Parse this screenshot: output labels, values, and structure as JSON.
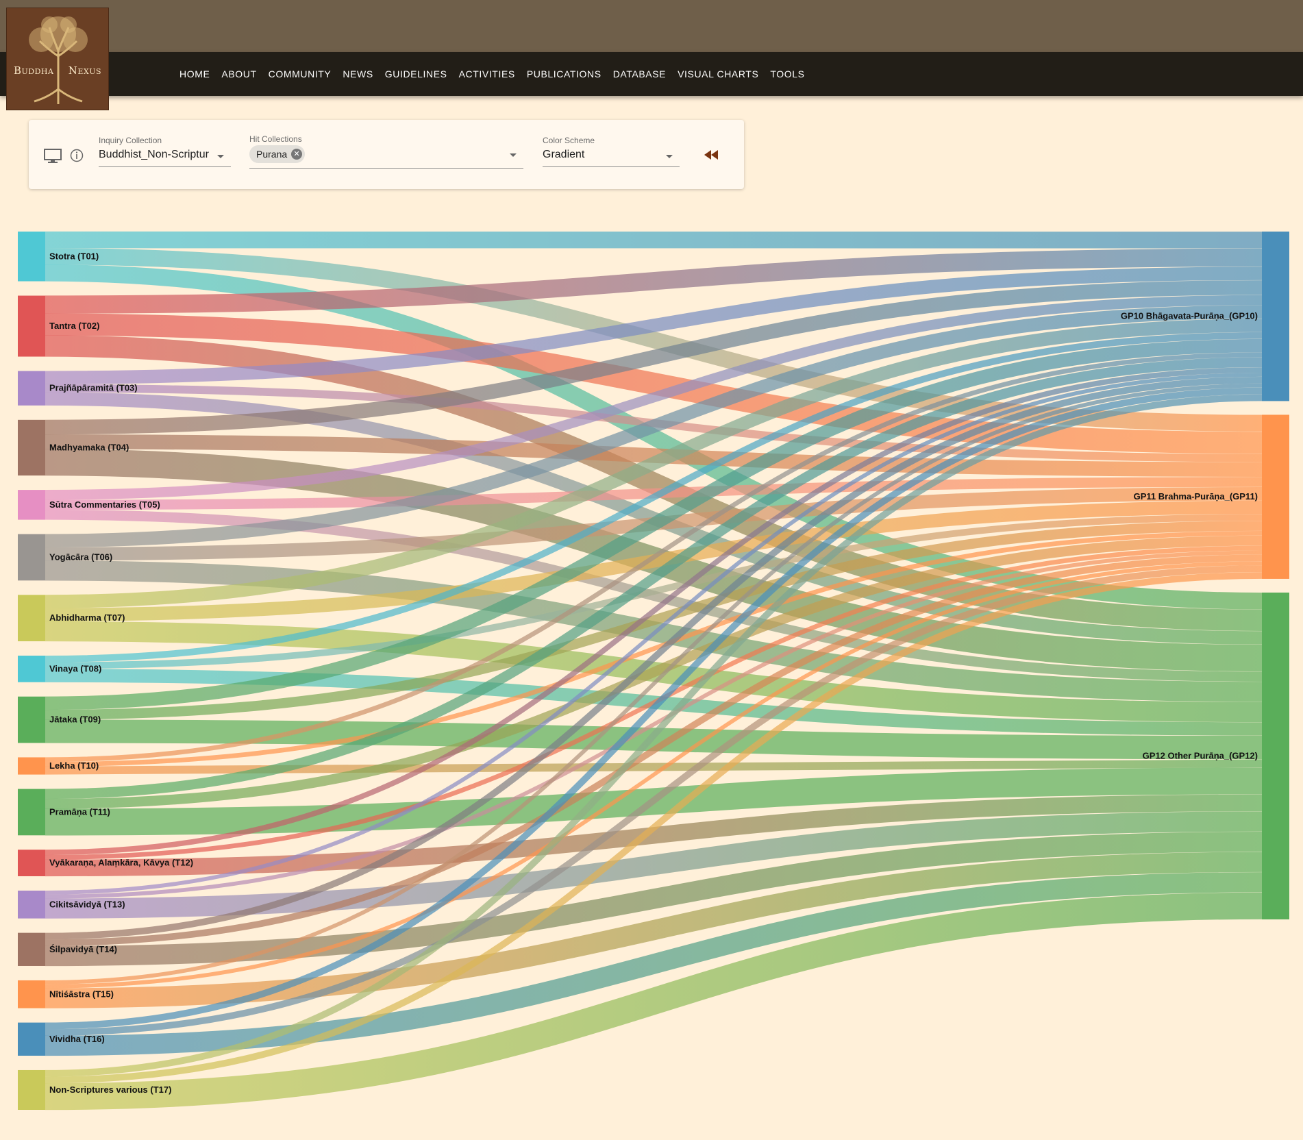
{
  "brand": {
    "logo_left": "Buddha",
    "logo_right": "Nexus"
  },
  "nav": {
    "items": [
      "HOME",
      "ABOUT",
      "COMMUNITY",
      "NEWS",
      "GUIDELINES",
      "ACTIVITIES",
      "PUBLICATIONS",
      "DATABASE",
      "VISUAL CHARTS",
      "TOOLS"
    ]
  },
  "toolbar": {
    "inquiry": {
      "label": "Inquiry Collection",
      "value": "Buddhist_Non-Scriptur"
    },
    "hits": {
      "label": "Hit Collections",
      "chip": "Purana"
    },
    "scheme": {
      "label": "Color Scheme",
      "value": "Gradient"
    },
    "icons": [
      "desktop-icon",
      "info-icon",
      "rewind-icon"
    ]
  },
  "chart_data": {
    "type": "sankey",
    "sources": [
      {
        "label": "Stotra (T01)",
        "color": "#4fc8d4",
        "values": [
          0.025,
          0.025,
          0.025
        ]
      },
      {
        "label": "Tantra (T02)",
        "color": "#e05555",
        "values": [
          0.027,
          0.033,
          0.032
        ]
      },
      {
        "label": "Prajñāpāramitā (T03)",
        "color": "#a889c9",
        "values": [
          0.02,
          0.012,
          0.02
        ]
      },
      {
        "label": "Madhyamaka (T04)",
        "color": "#9d7363",
        "values": [
          0.022,
          0.022,
          0.04
        ]
      },
      {
        "label": "Sūtra Commentaries (T05)",
        "color": "#e68fc3",
        "values": [
          0.015,
          0.015,
          0.015
        ]
      },
      {
        "label": "Yogācāra (T06)",
        "color": "#999591",
        "values": [
          0.02,
          0.02,
          0.03
        ]
      },
      {
        "label": "Abhidharma (T07)",
        "color": "#c9c95a",
        "values": [
          0.02,
          0.02,
          0.03
        ]
      },
      {
        "label": "Vinaya (T08)",
        "color": "#4fc8d4",
        "values": [
          0.01,
          0.01,
          0.02
        ]
      },
      {
        "label": "Jātaka (T09)",
        "color": "#5aae5a",
        "values": [
          0.02,
          0.015,
          0.035
        ]
      },
      {
        "label": "Lekha (T10)",
        "color": "#ff944d",
        "values": [
          0.007,
          0.007,
          0.012
        ]
      },
      {
        "label": "Pramāṇa (T11)",
        "color": "#5aae5a",
        "values": [
          0.015,
          0.015,
          0.04
        ]
      },
      {
        "label": "Vyākaraṇa, Alaṃkāra, Kāvya (T12)",
        "color": "#e05555",
        "values": [
          0.008,
          0.007,
          0.025
        ]
      },
      {
        "label": "Cikitsāvidyā (T13)",
        "color": "#a889c9",
        "values": [
          0.006,
          0.006,
          0.03
        ]
      },
      {
        "label": "Śilpavidyā (T14)",
        "color": "#9d7363",
        "values": [
          0.01,
          0.01,
          0.03
        ]
      },
      {
        "label": "Nītiśāstra (T15)",
        "color": "#ff944d",
        "values": [
          0.006,
          0.006,
          0.03
        ]
      },
      {
        "label": "Vividha (T16)",
        "color": "#4a8fba",
        "values": [
          0.01,
          0.01,
          0.03
        ]
      },
      {
        "label": "Non-Scriptures various (T17)",
        "color": "#c9c95a",
        "values": [
          0.01,
          0.01,
          0.04
        ]
      }
    ],
    "targets": [
      {
        "label": "GP10 Bhāgavata-Purāṇa_(GP10)",
        "color": "#4a8fba"
      },
      {
        "label": "GP11 Brahma-Purāṇa_(GP11)",
        "color": "#ff944d"
      },
      {
        "label": "GP12 Other Purāṇa_(GP12)",
        "color": "#5aae5a"
      }
    ]
  }
}
